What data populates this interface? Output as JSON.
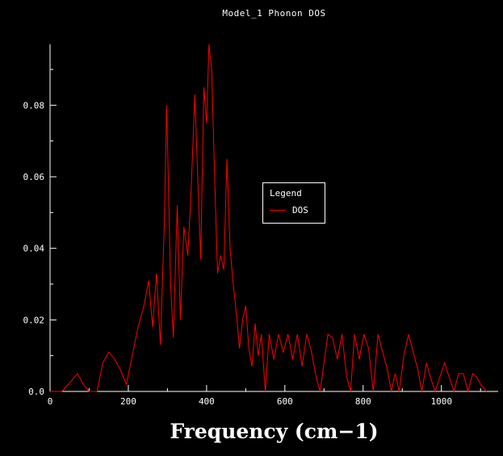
{
  "header": {
    "title": "Model_1 Phonon DOS"
  },
  "legend": {
    "title": "Legend",
    "entries": [
      {
        "label": "DOS",
        "color": "#ff0000"
      }
    ]
  },
  "colors": {
    "background": "#000000",
    "axis": "#ffffff",
    "series": "#ff0000"
  },
  "chart_data": {
    "type": "line",
    "title": "Model_1 Phonon DOS",
    "xlabel": "Frequency (cm−1)",
    "ylabel": "",
    "xlim": [
      0,
      1145
    ],
    "ylim": [
      0,
      0.097
    ],
    "xticks": [
      0,
      200,
      400,
      600,
      800,
      1000
    ],
    "xtick_labels": [
      "0",
      "200",
      "400",
      "600",
      "800",
      "1000"
    ],
    "xminor_step": 100,
    "yticks": [
      0.0,
      0.02,
      0.04,
      0.06,
      0.08
    ],
    "ytick_labels": [
      "0.0",
      "0.02",
      "0.04",
      "0.06",
      "0.08"
    ],
    "yminor_step": 0.01,
    "grid": false,
    "legend_position": "center-right",
    "series": [
      {
        "name": "DOS",
        "color": "#ff0000",
        "points": [
          [
            0,
            0
          ],
          [
            30,
            0
          ],
          [
            55,
            0.003
          ],
          [
            70,
            0.005
          ],
          [
            85,
            0.002
          ],
          [
            100,
            0
          ],
          [
            120,
            0
          ],
          [
            135,
            0.008
          ],
          [
            150,
            0.011
          ],
          [
            165,
            0.009
          ],
          [
            180,
            0.006
          ],
          [
            195,
            0.002
          ],
          [
            210,
            0.01
          ],
          [
            225,
            0.018
          ],
          [
            240,
            0.024
          ],
          [
            252,
            0.031
          ],
          [
            262,
            0.018
          ],
          [
            272,
            0.033
          ],
          [
            282,
            0.013
          ],
          [
            292,
            0.047
          ],
          [
            298,
            0.08
          ],
          [
            308,
            0.03
          ],
          [
            315,
            0.015
          ],
          [
            325,
            0.052
          ],
          [
            333,
            0.02
          ],
          [
            342,
            0.046
          ],
          [
            352,
            0.038
          ],
          [
            360,
            0.055
          ],
          [
            370,
            0.083
          ],
          [
            378,
            0.058
          ],
          [
            385,
            0.037
          ],
          [
            393,
            0.085
          ],
          [
            400,
            0.075
          ],
          [
            406,
            0.097
          ],
          [
            413,
            0.09
          ],
          [
            420,
            0.062
          ],
          [
            428,
            0.033
          ],
          [
            436,
            0.038
          ],
          [
            444,
            0.034
          ],
          [
            452,
            0.065
          ],
          [
            460,
            0.04
          ],
          [
            468,
            0.03
          ],
          [
            476,
            0.022
          ],
          [
            484,
            0.012
          ],
          [
            492,
            0.02
          ],
          [
            500,
            0.024
          ],
          [
            508,
            0.012
          ],
          [
            516,
            0.007
          ],
          [
            524,
            0.019
          ],
          [
            532,
            0.01
          ],
          [
            540,
            0.016
          ],
          [
            550,
            0.0
          ],
          [
            560,
            0.016
          ],
          [
            572,
            0.009
          ],
          [
            584,
            0.016
          ],
          [
            596,
            0.011
          ],
          [
            608,
            0.016
          ],
          [
            620,
            0.009
          ],
          [
            632,
            0.016
          ],
          [
            644,
            0.007
          ],
          [
            656,
            0.016
          ],
          [
            668,
            0.011
          ],
          [
            680,
            0.004
          ],
          [
            690,
            0.0
          ],
          [
            700,
            0.008
          ],
          [
            710,
            0.016
          ],
          [
            722,
            0.015
          ],
          [
            734,
            0.009
          ],
          [
            746,
            0.016
          ],
          [
            758,
            0.004
          ],
          [
            768,
            0.0
          ],
          [
            778,
            0.016
          ],
          [
            790,
            0.009
          ],
          [
            802,
            0.016
          ],
          [
            814,
            0.012
          ],
          [
            826,
            0.0
          ],
          [
            838,
            0.016
          ],
          [
            850,
            0.011
          ],
          [
            862,
            0.006
          ],
          [
            872,
            0.0
          ],
          [
            882,
            0.005
          ],
          [
            892,
            0.0
          ],
          [
            904,
            0.01
          ],
          [
            916,
            0.016
          ],
          [
            928,
            0.011
          ],
          [
            940,
            0.006
          ],
          [
            950,
            0.0
          ],
          [
            962,
            0.008
          ],
          [
            972,
            0.004
          ],
          [
            984,
            0.0
          ],
          [
            996,
            0.004
          ],
          [
            1008,
            0.008
          ],
          [
            1020,
            0.004
          ],
          [
            1032,
            0.0
          ],
          [
            1044,
            0.005
          ],
          [
            1056,
            0.005
          ],
          [
            1068,
            0.0
          ],
          [
            1080,
            0.005
          ],
          [
            1090,
            0.004
          ],
          [
            1100,
            0.002
          ],
          [
            1115,
            0.0
          ]
        ]
      }
    ]
  }
}
